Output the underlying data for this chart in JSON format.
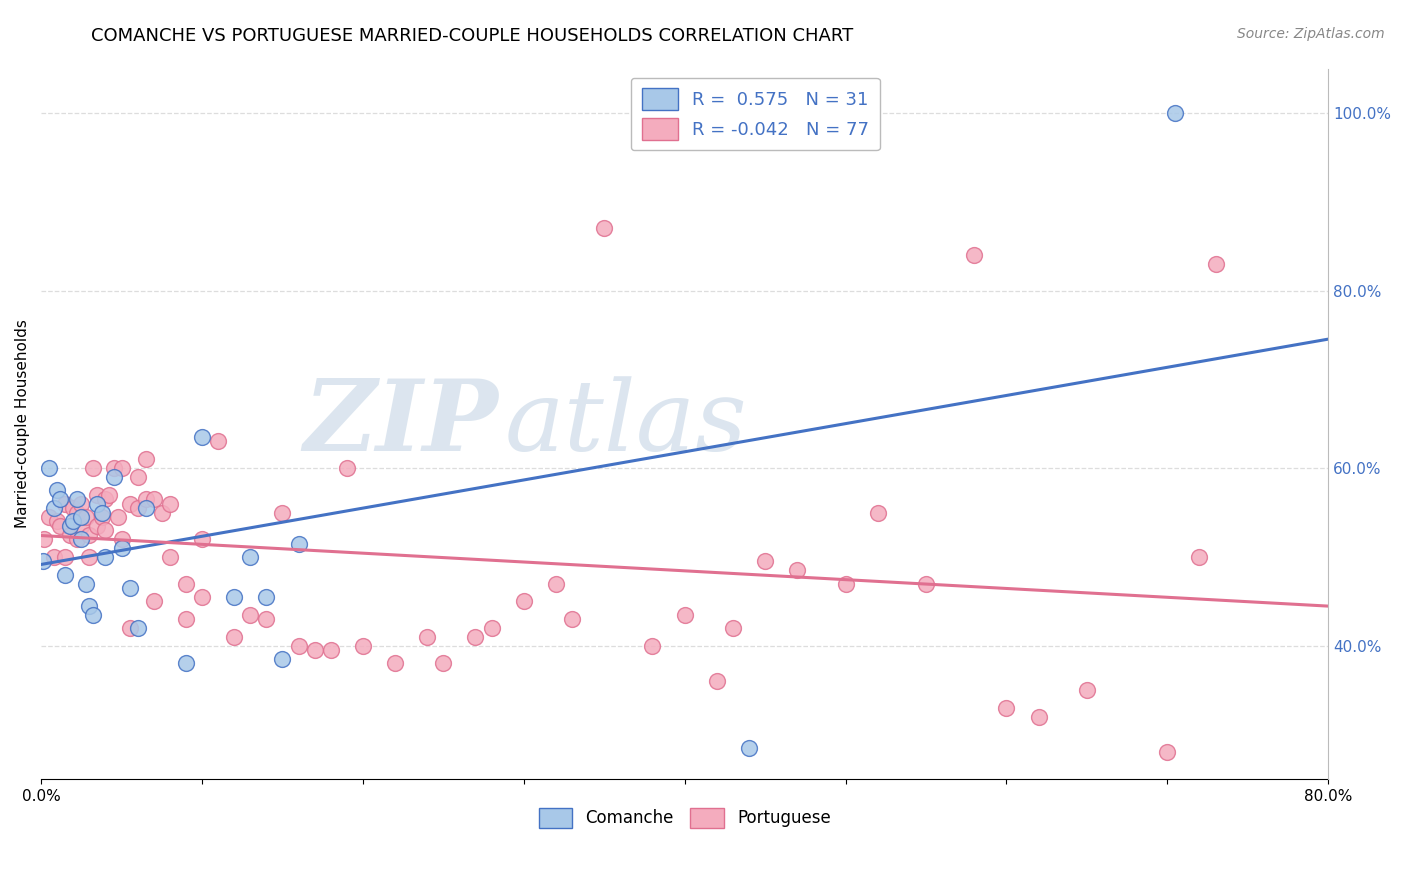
{
  "title": "COMANCHE VS PORTUGUESE MARRIED-COUPLE HOUSEHOLDS CORRELATION CHART",
  "source": "Source: ZipAtlas.com",
  "ylabel": "Married-couple Households",
  "watermark_zip": "ZIP",
  "watermark_atlas": "atlas",
  "xlim": [
    0.0,
    0.8
  ],
  "ylim": [
    0.25,
    1.05
  ],
  "ytick_vals": [
    0.4,
    0.6,
    0.8,
    1.0
  ],
  "ytick_labels": [
    "40.0%",
    "60.0%",
    "80.0%",
    "100.0%"
  ],
  "xtick_vals": [
    0.0,
    0.1,
    0.2,
    0.3,
    0.4,
    0.5,
    0.6,
    0.7,
    0.8
  ],
  "xtick_labels": [
    "0.0%",
    "",
    "",
    "",
    "",
    "",
    "",
    "",
    "80.0%"
  ],
  "comanche_color": "#A8C8E8",
  "comanche_edge_color": "#4472C4",
  "portuguese_color": "#F4ACBE",
  "portuguese_edge_color": "#E07090",
  "comanche_line_color": "#4472C4",
  "portuguese_line_color": "#E07090",
  "right_tick_color": "#4472C4",
  "R_comanche": 0.575,
  "N_comanche": 31,
  "R_portuguese": -0.042,
  "N_portuguese": 77,
  "comanche_x": [
    0.001,
    0.005,
    0.008,
    0.01,
    0.012,
    0.015,
    0.018,
    0.02,
    0.022,
    0.025,
    0.025,
    0.028,
    0.03,
    0.032,
    0.035,
    0.038,
    0.04,
    0.045,
    0.05,
    0.055,
    0.06,
    0.065,
    0.09,
    0.1,
    0.12,
    0.13,
    0.14,
    0.15,
    0.16,
    0.44,
    0.705
  ],
  "comanche_y": [
    0.495,
    0.6,
    0.555,
    0.575,
    0.565,
    0.48,
    0.535,
    0.54,
    0.565,
    0.52,
    0.545,
    0.47,
    0.445,
    0.435,
    0.56,
    0.55,
    0.5,
    0.59,
    0.51,
    0.465,
    0.42,
    0.555,
    0.38,
    0.635,
    0.455,
    0.5,
    0.455,
    0.385,
    0.515,
    0.285,
    1.0
  ],
  "portuguese_x": [
    0.002,
    0.005,
    0.008,
    0.01,
    0.012,
    0.015,
    0.015,
    0.018,
    0.02,
    0.022,
    0.022,
    0.025,
    0.025,
    0.028,
    0.03,
    0.03,
    0.032,
    0.035,
    0.035,
    0.038,
    0.04,
    0.04,
    0.042,
    0.045,
    0.048,
    0.05,
    0.05,
    0.055,
    0.055,
    0.06,
    0.06,
    0.065,
    0.065,
    0.07,
    0.07,
    0.075,
    0.08,
    0.08,
    0.09,
    0.09,
    0.1,
    0.1,
    0.11,
    0.12,
    0.13,
    0.14,
    0.15,
    0.16,
    0.17,
    0.18,
    0.19,
    0.2,
    0.22,
    0.24,
    0.25,
    0.27,
    0.28,
    0.3,
    0.32,
    0.33,
    0.35,
    0.38,
    0.4,
    0.42,
    0.43,
    0.45,
    0.47,
    0.5,
    0.52,
    0.55,
    0.58,
    0.6,
    0.62,
    0.65,
    0.7,
    0.72,
    0.73
  ],
  "portuguese_y": [
    0.52,
    0.545,
    0.5,
    0.54,
    0.535,
    0.5,
    0.56,
    0.525,
    0.555,
    0.52,
    0.55,
    0.535,
    0.56,
    0.545,
    0.5,
    0.525,
    0.6,
    0.57,
    0.535,
    0.545,
    0.53,
    0.565,
    0.57,
    0.6,
    0.545,
    0.52,
    0.6,
    0.56,
    0.42,
    0.555,
    0.59,
    0.61,
    0.565,
    0.565,
    0.45,
    0.55,
    0.56,
    0.5,
    0.43,
    0.47,
    0.455,
    0.52,
    0.63,
    0.41,
    0.435,
    0.43,
    0.55,
    0.4,
    0.395,
    0.395,
    0.6,
    0.4,
    0.38,
    0.41,
    0.38,
    0.41,
    0.42,
    0.45,
    0.47,
    0.43,
    0.87,
    0.4,
    0.435,
    0.36,
    0.42,
    0.495,
    0.485,
    0.47,
    0.55,
    0.47,
    0.84,
    0.33,
    0.32,
    0.35,
    0.28,
    0.5,
    0.83
  ],
  "background_color": "#FFFFFF",
  "grid_color": "#DDDDDD",
  "title_fontsize": 13,
  "axis_label_fontsize": 11,
  "tick_fontsize": 11,
  "legend_fontsize": 13,
  "source_fontsize": 10
}
